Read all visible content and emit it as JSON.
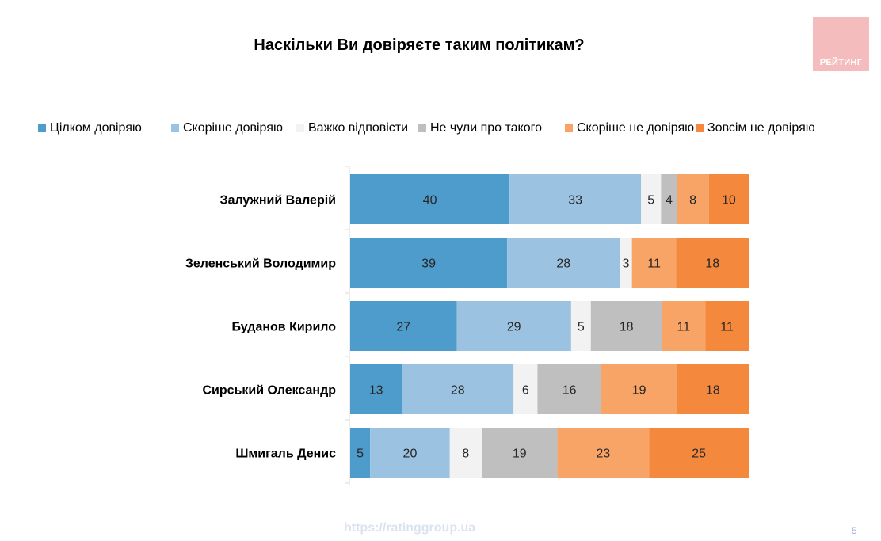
{
  "title": "Наскільки Ви довіряєте таким політикам?",
  "logo": {
    "text": "РЕЙТИНГ",
    "color": "#f4bcbc"
  },
  "footer": {
    "url": "https://ratinggroup.ua",
    "page": "5"
  },
  "chart_data": {
    "type": "bar",
    "orientation": "horizontal",
    "stacked": true,
    "unit": "%",
    "xlim": [
      0,
      100
    ],
    "grid": false,
    "legend_position": "top",
    "categories": [
      "Залужний Валерій",
      "Зеленський Володимир",
      "Буданов Кирило",
      "Сирський Олександр",
      "Шмигаль Денис"
    ],
    "series": [
      {
        "name": "Цілком довіряю",
        "color": "#4e9ccb",
        "values": [
          40,
          39,
          27,
          13,
          5
        ]
      },
      {
        "name": "Скоріше довіряю",
        "color": "#9bc3e1",
        "values": [
          33,
          28,
          29,
          28,
          20
        ]
      },
      {
        "name": "Важко відповісти",
        "color": "#f2f2f2",
        "values": [
          5,
          3,
          5,
          6,
          8
        ]
      },
      {
        "name": "Не чули про такого",
        "color": "#bfbfbf",
        "values": [
          4,
          0,
          18,
          16,
          19
        ]
      },
      {
        "name": "Скоріше не довіряю",
        "color": "#f8a466",
        "values": [
          8,
          11,
          11,
          19,
          23
        ]
      },
      {
        "name": "Зовсім не довіряю",
        "color": "#f4893d",
        "values": [
          10,
          18,
          11,
          18,
          25
        ]
      }
    ]
  }
}
